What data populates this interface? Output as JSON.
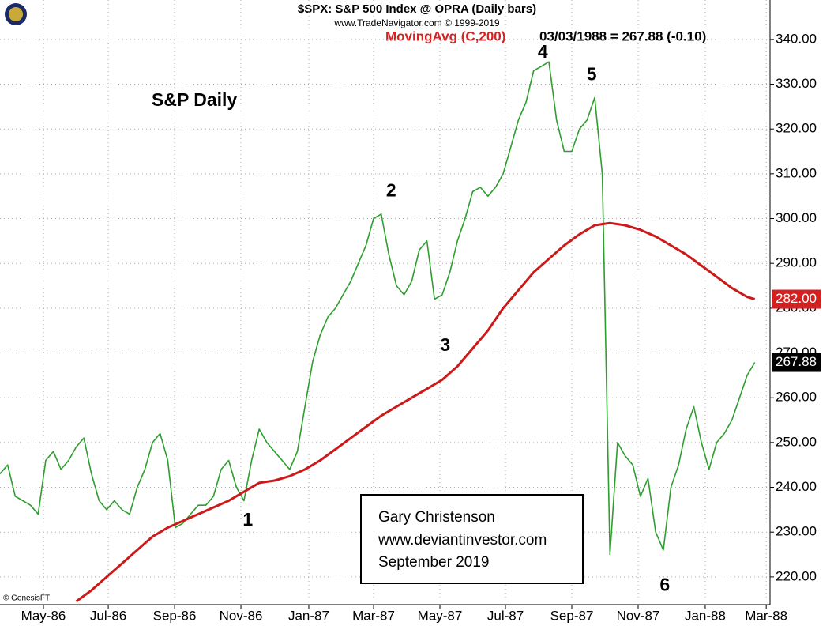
{
  "chart_data": {
    "type": "line",
    "title": "$SPX:  S&P 500 Index @ OPRA  (Daily bars)",
    "subtitle": "www.TradeNavigator.com © 1999-2019",
    "indicator_label": "MovingAvg (C,200)",
    "readout": "03/03/1988 = 267.88 (-0.10)",
    "chart_label": "S&P Daily",
    "credit": "© GenesisFT",
    "note_lines": [
      "Gary Christenson",
      "www.deviantinvestor.com",
      "September 2019"
    ],
    "xlim": [
      0,
      101
    ],
    "xticks": [
      {
        "value": 5.7,
        "label": "May-86"
      },
      {
        "value": 14.2,
        "label": "Jul-86"
      },
      {
        "value": 22.9,
        "label": "Sep-86"
      },
      {
        "value": 31.6,
        "label": "Nov-86"
      },
      {
        "value": 40.5,
        "label": "Jan-87"
      },
      {
        "value": 49,
        "label": "Mar-87"
      },
      {
        "value": 57.7,
        "label": "May-87"
      },
      {
        "value": 66.3,
        "label": "Jul-87"
      },
      {
        "value": 75,
        "label": "Sep-87"
      },
      {
        "value": 83.7,
        "label": "Nov-87"
      },
      {
        "value": 92.5,
        "label": "Jan-88"
      },
      {
        "value": 100.5,
        "label": "Mar-88"
      }
    ],
    "ylim": [
      213.8,
      348.8
    ],
    "yticks": [
      {
        "value": 220,
        "label": "220.00"
      },
      {
        "value": 230,
        "label": "230.00"
      },
      {
        "value": 240,
        "label": "240.00"
      },
      {
        "value": 250,
        "label": "250.00"
      },
      {
        "value": 260,
        "label": "260.00"
      },
      {
        "value": 270,
        "label": "270.00"
      },
      {
        "value": 280,
        "label": "280.00"
      },
      {
        "value": 290,
        "label": "290.00"
      },
      {
        "value": 300,
        "label": "300.00"
      },
      {
        "value": 310,
        "label": "310.00"
      },
      {
        "value": 320,
        "label": "320.00"
      },
      {
        "value": 330,
        "label": "330.00"
      },
      {
        "value": 340,
        "label": "340.00"
      }
    ],
    "grid": true,
    "series": [
      {
        "name": "S&P 500",
        "color": "#2e9e2e",
        "last_label": "267.88",
        "tag_color": "#000000",
        "x": [
          0,
          1,
          2,
          3,
          4,
          5,
          6,
          7,
          8,
          9,
          10,
          11,
          12,
          13,
          14,
          15,
          16,
          17,
          18,
          19,
          20,
          21,
          22,
          23,
          24,
          25,
          26,
          27,
          28,
          29,
          30,
          31,
          32,
          33,
          34,
          35,
          36,
          37,
          38,
          39,
          40,
          41,
          42,
          43,
          44,
          45,
          46,
          47,
          48,
          49,
          50,
          51,
          52,
          53,
          54,
          55,
          56,
          57,
          58,
          59,
          60,
          61,
          62,
          63,
          64,
          65,
          66,
          67,
          68,
          69,
          70,
          71,
          72,
          73,
          74,
          75,
          76,
          77,
          78,
          79,
          80,
          81,
          82,
          83,
          84,
          85,
          86,
          87,
          88,
          89,
          90,
          91,
          92,
          93,
          94,
          95,
          96,
          97,
          98,
          99
        ],
        "values": [
          243,
          245,
          238,
          237,
          236,
          234,
          246,
          248,
          244,
          246,
          249,
          251,
          243,
          237,
          235,
          237,
          235,
          234,
          240,
          244,
          250,
          252,
          246,
          231,
          232,
          234,
          236,
          236,
          238,
          244,
          246,
          240,
          237,
          246,
          253,
          250,
          248,
          246,
          244,
          248,
          258,
          268,
          274,
          278,
          280,
          283,
          286,
          290,
          294,
          300,
          301,
          292,
          285,
          283,
          286,
          293,
          295,
          282,
          283,
          288,
          295,
          300,
          306,
          307,
          305,
          307,
          310,
          316,
          322,
          326,
          333,
          334,
          335,
          322,
          315,
          315,
          320,
          322,
          327,
          310,
          225,
          250,
          247,
          245,
          238,
          242,
          230,
          226,
          240,
          245,
          253,
          258,
          250,
          244,
          250,
          252,
          255,
          260,
          265,
          267.88
        ]
      },
      {
        "name": "MovingAvg (C,200)",
        "color": "#cc1a1a",
        "last_label": "282.00",
        "tag_color": "#d42020",
        "x": [
          10,
          12,
          14,
          16,
          18,
          20,
          22,
          24,
          26,
          28,
          30,
          32,
          34,
          36,
          38,
          40,
          42,
          44,
          46,
          48,
          50,
          52,
          54,
          56,
          58,
          60,
          62,
          64,
          66,
          68,
          70,
          72,
          74,
          76,
          78,
          80,
          82,
          84,
          86,
          88,
          90,
          92,
          94,
          96,
          98,
          99
        ],
        "values": [
          214.5,
          217,
          220,
          223,
          226,
          229,
          231,
          232.5,
          234,
          235.5,
          237,
          239,
          241,
          241.5,
          242.5,
          244,
          246,
          248.5,
          251,
          253.5,
          256,
          258,
          260,
          262,
          264,
          267,
          271,
          275,
          280,
          284,
          288,
          291,
          294,
          296.5,
          298.5,
          299,
          298.5,
          297.5,
          296,
          294,
          292,
          289.5,
          287,
          284.5,
          282.5,
          282
        ]
      }
    ],
    "annotations": [
      {
        "text": "1",
        "x": 32.5,
        "y": 232.5
      },
      {
        "text": "2",
        "x": 51.3,
        "y": 306
      },
      {
        "text": "3",
        "x": 58.4,
        "y": 271.5
      },
      {
        "text": "4",
        "x": 71.2,
        "y": 337
      },
      {
        "text": "5",
        "x": 77.6,
        "y": 332
      },
      {
        "text": "6",
        "x": 87.2,
        "y": 218
      }
    ]
  }
}
